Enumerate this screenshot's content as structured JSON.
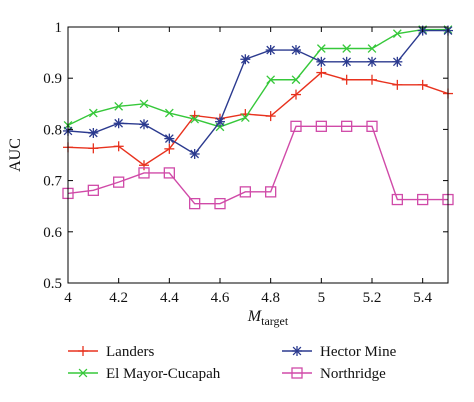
{
  "chart_data": {
    "type": "line",
    "title": "",
    "xlabel_main": "M",
    "xlabel_sub": "target",
    "ylabel": "AUC",
    "xlim": [
      4.0,
      5.5
    ],
    "ylim": [
      0.5,
      1.0
    ],
    "x_ticks": [
      4.0,
      4.2,
      4.4,
      4.6,
      4.8,
      5.0,
      5.2,
      5.4
    ],
    "x_tick_labels": [
      "4",
      "4.2",
      "4.4",
      "4.6",
      "4.8",
      "5",
      "5.2",
      "5.4"
    ],
    "y_ticks": [
      0.5,
      0.6,
      0.7,
      0.8,
      0.9,
      1.0
    ],
    "y_tick_labels": [
      "0.5",
      "0.6",
      "0.7",
      "0.8",
      "0.9",
      "1"
    ],
    "grid": false,
    "legend_position": "bottom",
    "x": [
      4.0,
      4.1,
      4.2,
      4.3,
      4.4,
      4.5,
      4.6,
      4.7,
      4.8,
      4.9,
      5.0,
      5.1,
      5.2,
      5.3,
      5.4,
      5.5
    ],
    "series": [
      {
        "name": "Landers",
        "color": "#e8321e",
        "marker": "plus",
        "values": [
          0.765,
          0.763,
          0.767,
          0.73,
          0.762,
          0.827,
          0.821,
          0.83,
          0.826,
          0.868,
          0.911,
          0.897,
          0.897,
          0.887,
          0.887,
          0.87
        ]
      },
      {
        "name": "El Mayor-Cucapah",
        "color": "#36c83a",
        "marker": "x",
        "values": [
          0.808,
          0.832,
          0.845,
          0.85,
          0.832,
          0.82,
          0.805,
          0.823,
          0.897,
          0.897,
          0.958,
          0.958,
          0.958,
          0.987,
          0.995,
          0.995
        ]
      },
      {
        "name": "Hector Mine",
        "color": "#2b3a8f",
        "marker": "star",
        "values": [
          0.797,
          0.793,
          0.812,
          0.81,
          0.782,
          0.752,
          0.815,
          0.937,
          0.955,
          0.955,
          0.932,
          0.932,
          0.932,
          0.932,
          0.993,
          0.993
        ]
      },
      {
        "name": "Northridge",
        "color": "#d04aa8",
        "marker": "square",
        "values": [
          0.675,
          0.681,
          0.697,
          0.715,
          0.715,
          0.655,
          0.655,
          0.678,
          0.678,
          0.806,
          0.806,
          0.806,
          0.806,
          0.663,
          0.663,
          0.663
        ]
      }
    ]
  }
}
